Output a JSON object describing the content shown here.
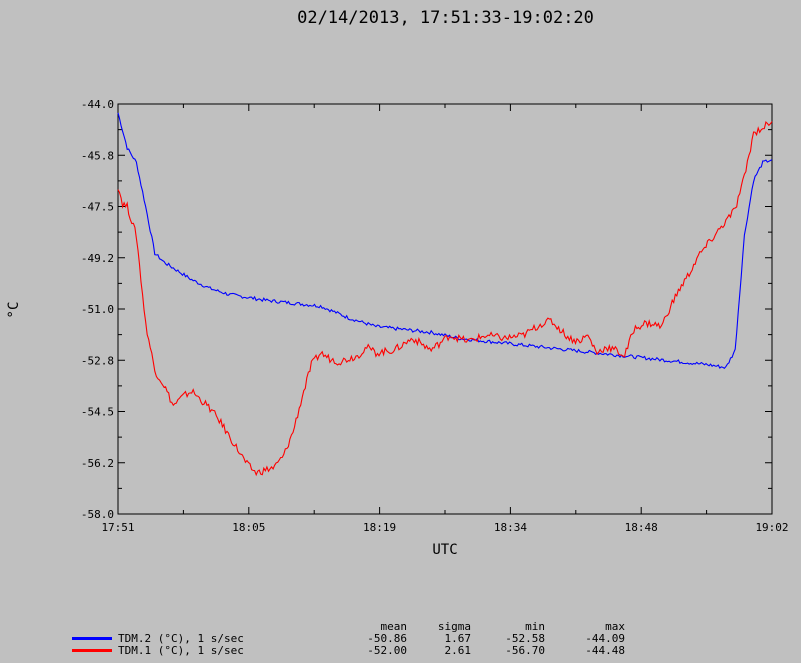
{
  "chart_data": {
    "type": "line",
    "title": "02/14/2013, 17:51:33-19:02:20",
    "xlabel": "UTC",
    "ylabel": "°C",
    "xlim": [
      "17:51",
      "19:02"
    ],
    "ylim": [
      -58.0,
      -44.0
    ],
    "x_tick_labels": [
      "17:51",
      "18:05",
      "18:19",
      "18:34",
      "18:48",
      "19:02"
    ],
    "y_tick_labels": [
      "-44.0",
      "-45.8",
      "-47.5",
      "-49.2",
      "-51.0",
      "-52.8",
      "-54.5",
      "-56.2",
      "-58.0"
    ],
    "grid": false,
    "legend_position": "bottom-left",
    "stats_headers": [
      "mean",
      "sigma",
      "min",
      "max"
    ],
    "series": [
      {
        "name": "TDM.2 (°C), 1 s/sec",
        "color": "#0000ff",
        "stats": [
          "-50.86",
          "1.67",
          "-52.58",
          "-44.09"
        ],
        "x": [
          "17:51",
          "17:52",
          "17:53",
          "17:54",
          "17:55",
          "17:56",
          "17:57",
          "17:59",
          "18:01",
          "18:03",
          "18:05",
          "18:07",
          "18:10",
          "18:13",
          "18:16",
          "18:19",
          "18:22",
          "18:25",
          "18:28",
          "18:31",
          "18:34",
          "18:37",
          "18:40",
          "18:43",
          "18:46",
          "18:49",
          "18:52",
          "18:55",
          "18:57",
          "18:58",
          "18:59",
          "19:00",
          "19:01",
          "19:02"
        ],
        "y": [
          -44.3,
          -45.5,
          -46.0,
          -47.5,
          -49.1,
          -49.4,
          -49.6,
          -50.0,
          -50.3,
          -50.5,
          -50.6,
          -50.7,
          -50.8,
          -50.9,
          -51.3,
          -51.6,
          -51.7,
          -51.8,
          -52.0,
          -52.1,
          -52.2,
          -52.3,
          -52.4,
          -52.5,
          -52.6,
          -52.7,
          -52.8,
          -52.9,
          -53.0,
          -52.4,
          -48.5,
          -46.6,
          -46.0,
          -45.9
        ]
      },
      {
        "name": "TDM.1 (°C), 1 s/sec",
        "color": "#ff0000",
        "stats": [
          "-52.00",
          "2.61",
          "-56.70",
          "-44.48"
        ],
        "x": [
          "17:51",
          "17:51:30",
          "17:52",
          "17:53",
          "17:54",
          "17:55",
          "17:56",
          "17:57",
          "17:58",
          "17:59",
          "18:00",
          "18:01",
          "18:02",
          "18:03",
          "18:04",
          "18:05",
          "18:06",
          "18:07",
          "18:08",
          "18:09",
          "18:10",
          "18:11",
          "18:12",
          "18:13",
          "18:14",
          "18:15",
          "18:16",
          "18:17",
          "18:18",
          "18:19",
          "18:21",
          "18:23",
          "18:25",
          "18:27",
          "18:29",
          "18:31",
          "18:33",
          "18:35",
          "18:37",
          "18:38",
          "18:39",
          "18:40",
          "18:41",
          "18:42",
          "18:43",
          "18:44",
          "18:45",
          "18:46",
          "18:47",
          "18:48",
          "18:49",
          "18:50",
          "18:51",
          "18:52",
          "18:53",
          "18:54",
          "18:55",
          "18:56",
          "18:57",
          "18:58",
          "18:59",
          "19:00",
          "19:01",
          "19:02"
        ],
        "y": [
          -46.8,
          -47.4,
          -47.5,
          -48.5,
          -51.5,
          -53.1,
          -53.6,
          -54.3,
          -54.0,
          -53.8,
          -54.1,
          -54.4,
          -54.8,
          -55.3,
          -55.8,
          -56.3,
          -56.6,
          -56.5,
          -56.4,
          -56.0,
          -55.2,
          -54.0,
          -52.9,
          -52.5,
          -52.7,
          -52.8,
          -52.7,
          -52.6,
          -52.3,
          -52.5,
          -52.4,
          -52.0,
          -52.4,
          -51.9,
          -52.1,
          -51.9,
          -52.0,
          -51.9,
          -51.5,
          -51.4,
          -51.7,
          -52.0,
          -52.1,
          -51.9,
          -52.5,
          -52.3,
          -52.4,
          -52.6,
          -51.7,
          -51.5,
          -51.5,
          -51.6,
          -50.9,
          -50.3,
          -49.8,
          -49.2,
          -48.8,
          -48.4,
          -48.0,
          -47.6,
          -46.5,
          -45.0,
          -44.8,
          -44.6
        ]
      }
    ]
  }
}
